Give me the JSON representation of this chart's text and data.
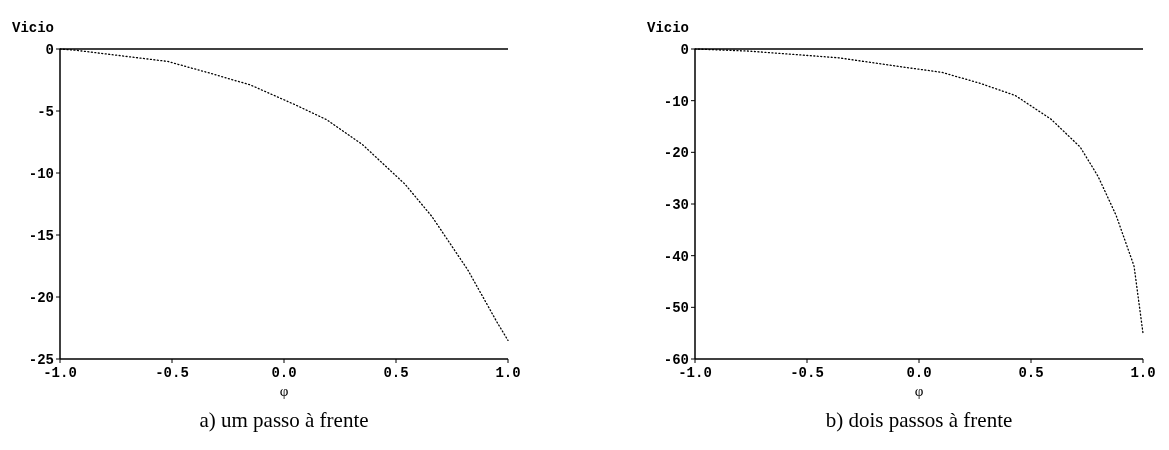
{
  "chart_data": [
    {
      "type": "line",
      "title": "a) um passo à frente",
      "xlabel": "φ",
      "ylabel": "Vicio",
      "xlim": [
        -1,
        1
      ],
      "xticks": [
        {
          "value": -1,
          "label": "-1.0"
        },
        {
          "value": -0.5,
          "label": "-0.5"
        },
        {
          "value": 0,
          "label": "0.0"
        },
        {
          "value": 0.5,
          "label": "0.5"
        },
        {
          "value": 1,
          "label": "1.0"
        }
      ],
      "ylim": [
        -25,
        0
      ],
      "yticks": [
        0,
        -5,
        -10,
        -15,
        -20,
        -25
      ],
      "line_style": "dotted",
      "series": [
        {
          "color": "#000000",
          "x": [
            -1,
            -0.93,
            -0.52,
            -0.34,
            -0.15,
            0.05,
            0.19,
            0.35,
            0.54,
            0.66,
            0.82,
            0.95,
            1
          ],
          "values": [
            0,
            -0.1,
            -1,
            -1.9,
            -2.9,
            -4.5,
            -5.7,
            -7.7,
            -10.9,
            -13.5,
            -17.8,
            -22,
            -23.5
          ]
        }
      ]
    },
    {
      "type": "line",
      "title": "b) dois passos à frente",
      "xlabel": "φ",
      "ylabel": "Vicio",
      "xlim": [
        -1,
        1
      ],
      "xticks": [
        {
          "value": -1,
          "label": "-1.0"
        },
        {
          "value": -0.5,
          "label": "-0.5"
        },
        {
          "value": 0,
          "label": "0.0"
        },
        {
          "value": 0.5,
          "label": "0.5"
        },
        {
          "value": 1,
          "label": "1.0"
        }
      ],
      "ylim": [
        -60,
        0
      ],
      "yticks": [
        0,
        -10,
        -20,
        -30,
        -40,
        -50,
        -60
      ],
      "line_style": "dotted",
      "series": [
        {
          "color": "#000000",
          "x": [
            -1,
            -0.76,
            -0.36,
            -0.07,
            0.1,
            0.27,
            0.43,
            0.59,
            0.72,
            0.8,
            0.88,
            0.96,
            1
          ],
          "values": [
            0,
            -0.4,
            -1.7,
            -3.5,
            -4.5,
            -6.6,
            -9,
            -13.6,
            -19,
            -24.7,
            -32.2,
            -42,
            -55
          ]
        }
      ]
    }
  ]
}
